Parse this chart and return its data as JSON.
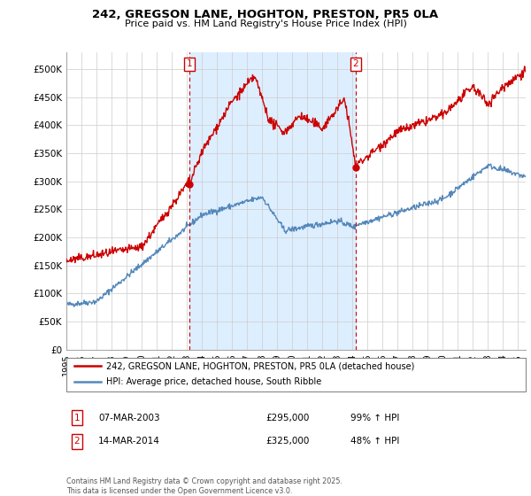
{
  "title": "242, GREGSON LANE, HOGHTON, PRESTON, PR5 0LA",
  "subtitle": "Price paid vs. HM Land Registry's House Price Index (HPI)",
  "ylabel_ticks": [
    "£0",
    "£50K",
    "£100K",
    "£150K",
    "£200K",
    "£250K",
    "£300K",
    "£350K",
    "£400K",
    "£450K",
    "£500K"
  ],
  "ytick_values": [
    0,
    50000,
    100000,
    150000,
    200000,
    250000,
    300000,
    350000,
    400000,
    450000,
    500000
  ],
  "ylim": [
    0,
    530000
  ],
  "xlim_start": 1995.0,
  "xlim_end": 2025.5,
  "red_line_color": "#cc0000",
  "blue_line_color": "#5588bb",
  "shade_color": "#ddeeff",
  "marker1_x": 2003.18,
  "marker1_y": 295000,
  "marker2_x": 2014.2,
  "marker2_y": 325000,
  "legend_label_red": "242, GREGSON LANE, HOGHTON, PRESTON, PR5 0LA (detached house)",
  "legend_label_blue": "HPI: Average price, detached house, South Ribble",
  "annotation1_label": "1",
  "annotation2_label": "2",
  "table_row1": [
    "1",
    "07-MAR-2003",
    "£295,000",
    "99% ↑ HPI"
  ],
  "table_row2": [
    "2",
    "14-MAR-2014",
    "£325,000",
    "48% ↑ HPI"
  ],
  "footer": "Contains HM Land Registry data © Crown copyright and database right 2025.\nThis data is licensed under the Open Government Licence v3.0.",
  "background_color": "#ffffff",
  "plot_bg_color": "#ffffff",
  "grid_color": "#cccccc"
}
